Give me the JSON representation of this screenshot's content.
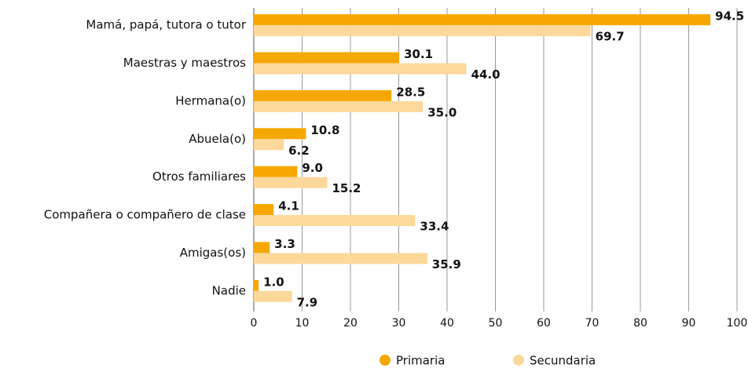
{
  "chart_data": {
    "type": "bar",
    "orientation": "horizontal",
    "categories": [
      "Mamá, papá, tutora o tutor",
      "Maestras y maestros",
      "Hermana(o)",
      "Abuela(o)",
      "Otros familiares",
      "Compañera o compañero de clase",
      "Amigas(os)",
      "Nadie"
    ],
    "series": [
      {
        "name": "Primaria",
        "color": "#f5a800",
        "values": [
          94.5,
          30.1,
          28.5,
          10.8,
          9.0,
          4.1,
          3.3,
          1.0
        ],
        "value_labels": [
          "94.5",
          "30.1",
          "28.5",
          "10.8",
          "9.0",
          "4.1",
          "3.3",
          "1.0"
        ]
      },
      {
        "name": "Secundaria",
        "color": "#fcd89a",
        "values": [
          69.7,
          44.0,
          35.0,
          6.2,
          15.2,
          33.4,
          35.9,
          7.9
        ],
        "value_labels": [
          "69.7",
          "44.0",
          "35.0",
          "6.2",
          "15.2",
          "33.4",
          "35.9",
          "7.9"
        ]
      }
    ],
    "xlim": [
      0,
      100
    ],
    "xticks": [
      0,
      10,
      20,
      30,
      40,
      50,
      60,
      70,
      80,
      90,
      100
    ],
    "grid": true,
    "legend": "bottom"
  }
}
